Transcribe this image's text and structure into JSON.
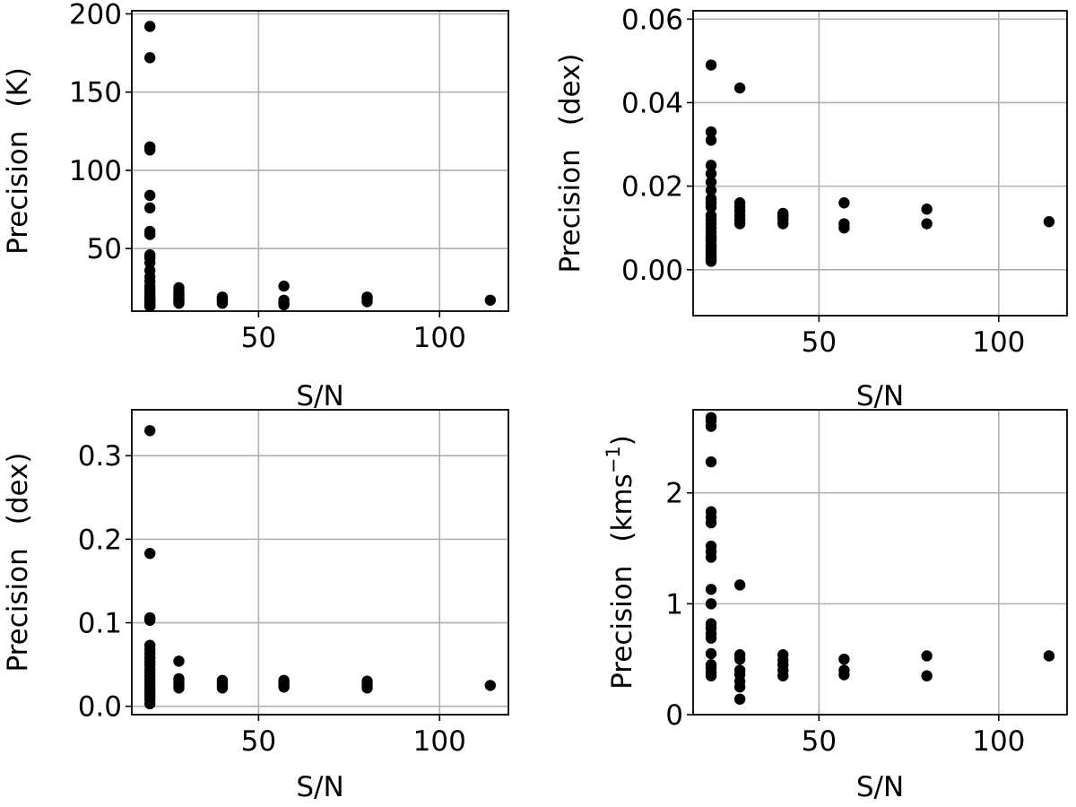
{
  "chart_data": [
    {
      "type": "scatter",
      "title": "",
      "xlabel": "S/N",
      "ylabel_main": "Precision",
      "ylabel_unit": "(K)",
      "xlim": [
        15,
        119
      ],
      "ylim": [
        10,
        202
      ],
      "xticks": [
        50,
        100
      ],
      "xtick_labels": [
        "50",
        "100"
      ],
      "yticks": [
        50,
        100,
        150,
        200
      ],
      "ytick_labels": [
        "50",
        "100",
        "150",
        "200"
      ],
      "grid": true,
      "x": [
        20,
        20,
        20,
        20,
        20,
        20,
        20,
        20,
        20,
        20,
        20,
        20,
        20,
        20,
        20,
        20,
        20,
        20,
        20,
        20,
        20,
        20,
        20,
        20,
        28,
        28,
        28,
        28,
        28,
        28,
        28,
        28,
        40,
        40,
        40,
        40,
        40,
        57,
        57,
        57,
        57,
        80,
        80,
        80,
        114
      ],
      "y": [
        192,
        172,
        115,
        113,
        84,
        76,
        61,
        59,
        46,
        44,
        41,
        36,
        32,
        29,
        26,
        24,
        22,
        20,
        18,
        17,
        16,
        15,
        14,
        13,
        25,
        23,
        21,
        20,
        18,
        17,
        16,
        15,
        19,
        18,
        17,
        16,
        15,
        26,
        17,
        15,
        14,
        19,
        18,
        16,
        17
      ]
    },
    {
      "type": "scatter",
      "title": "",
      "xlabel": "S/N",
      "ylabel_main": "Precision",
      "ylabel_unit": "(dex)",
      "xlim": [
        15,
        119
      ],
      "ylim": [
        -0.011,
        0.062
      ],
      "xticks": [
        50,
        100
      ],
      "xtick_labels": [
        "50",
        "100"
      ],
      "yticks": [
        0.0,
        0.02,
        0.04,
        0.06
      ],
      "ytick_labels": [
        "0.00",
        "0.02",
        "0.04",
        "0.06"
      ],
      "grid": true,
      "x": [
        20,
        20,
        20,
        20,
        20,
        20,
        20,
        20,
        20,
        20,
        20,
        20,
        20,
        20,
        20,
        20,
        20,
        20,
        20,
        20,
        20,
        20,
        20,
        20,
        20,
        20,
        20,
        28,
        28,
        28,
        28,
        28,
        28,
        28,
        40,
        40,
        40,
        40,
        40,
        57,
        57,
        57,
        80,
        80,
        114
      ],
      "y": [
        0.049,
        0.033,
        0.031,
        0.025,
        0.023,
        0.021,
        0.019,
        0.017,
        0.016,
        0.015,
        0.013,
        0.012,
        0.011,
        0.01,
        0.009,
        0.008,
        0.0075,
        0.007,
        0.006,
        0.0055,
        0.005,
        0.0045,
        0.004,
        0.0035,
        0.003,
        0.0025,
        0.002,
        0.0435,
        0.016,
        0.015,
        0.014,
        0.013,
        0.012,
        0.011,
        0.0135,
        0.013,
        0.0125,
        0.012,
        0.011,
        0.016,
        0.011,
        0.01,
        0.0145,
        0.011,
        0.0115
      ]
    },
    {
      "type": "scatter",
      "title": "",
      "xlabel": "S/N",
      "ylabel_main": "Precision",
      "ylabel_unit": "(dex)",
      "xlim": [
        15,
        119
      ],
      "ylim": [
        -0.01,
        0.355
      ],
      "xticks": [
        50,
        100
      ],
      "xtick_labels": [
        "50",
        "100"
      ],
      "yticks": [
        0.0,
        0.1,
        0.2,
        0.3
      ],
      "ytick_labels": [
        "0.0",
        "0.1",
        "0.2",
        "0.3"
      ],
      "grid": true,
      "x": [
        20,
        20,
        20,
        20,
        20,
        20,
        20,
        20,
        20,
        20,
        20,
        20,
        20,
        20,
        20,
        20,
        20,
        20,
        20,
        20,
        20,
        28,
        28,
        28,
        28,
        28,
        40,
        40,
        40,
        40,
        57,
        57,
        57,
        57,
        80,
        80,
        80,
        114
      ],
      "y": [
        0.33,
        0.183,
        0.106,
        0.103,
        0.073,
        0.068,
        0.063,
        0.058,
        0.053,
        0.049,
        0.044,
        0.04,
        0.036,
        0.032,
        0.028,
        0.024,
        0.02,
        0.016,
        0.012,
        0.008,
        0.003,
        0.054,
        0.033,
        0.029,
        0.026,
        0.022,
        0.031,
        0.028,
        0.025,
        0.022,
        0.031,
        0.028,
        0.025,
        0.023,
        0.03,
        0.026,
        0.022,
        0.025
      ]
    },
    {
      "type": "scatter",
      "title": "",
      "xlabel": "S/N",
      "ylabel_main": "Precision",
      "ylabel_unit": "(kms",
      "ylabel_unit_superscript": "−1",
      "ylabel_unit_close": ")",
      "xlim": [
        15,
        119
      ],
      "ylim": [
        0,
        2.75
      ],
      "xticks": [
        50,
        100
      ],
      "xtick_labels": [
        "50",
        "100"
      ],
      "yticks": [
        0,
        1,
        2
      ],
      "ytick_labels": [
        "0",
        "1",
        "2"
      ],
      "grid": true,
      "x": [
        20,
        20,
        20,
        20,
        20,
        20,
        20,
        20,
        20,
        20,
        20,
        20,
        20,
        20,
        20,
        20,
        20,
        20,
        20,
        20,
        20,
        28,
        28,
        28,
        28,
        28,
        28,
        28,
        28,
        40,
        40,
        40,
        40,
        40,
        57,
        57,
        57,
        80,
        80,
        114
      ],
      "y": [
        2.68,
        2.65,
        2.6,
        2.28,
        1.83,
        1.78,
        1.73,
        1.52,
        1.47,
        1.42,
        1.13,
        1.0,
        0.82,
        0.78,
        0.73,
        0.69,
        0.55,
        0.45,
        0.42,
        0.38,
        0.35,
        1.17,
        0.54,
        0.5,
        0.4,
        0.36,
        0.3,
        0.25,
        0.14,
        0.54,
        0.49,
        0.45,
        0.4,
        0.35,
        0.5,
        0.4,
        0.36,
        0.53,
        0.35,
        0.53
      ]
    }
  ]
}
